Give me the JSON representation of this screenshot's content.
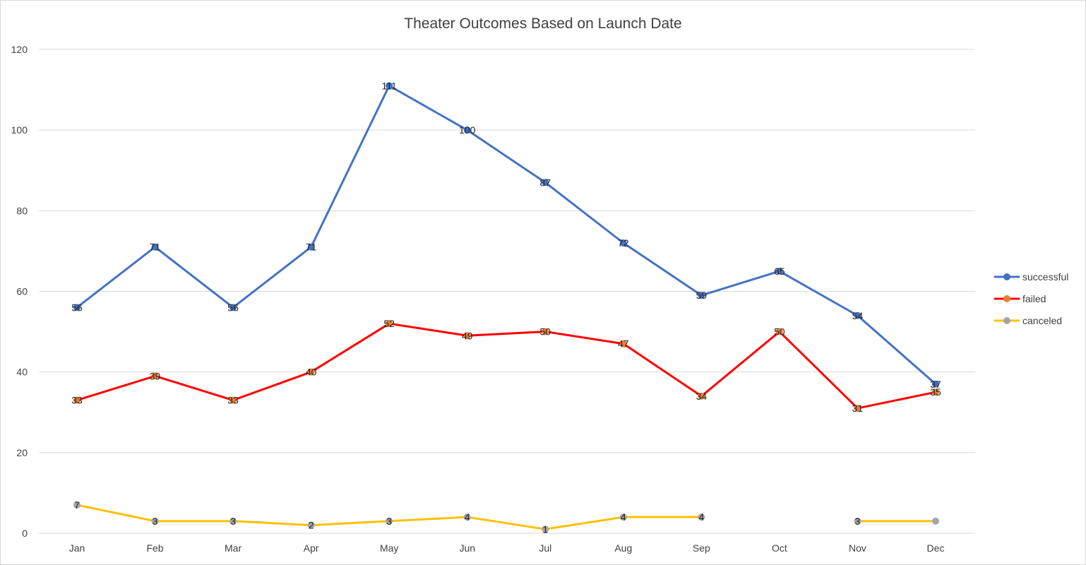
{
  "chart_data": {
    "type": "line",
    "title": "Theater Outcomes Based on Launch Date",
    "xlabel": "",
    "ylabel": "",
    "categories": [
      "Jan",
      "Feb",
      "Mar",
      "Apr",
      "May",
      "Jun",
      "Jul",
      "Aug",
      "Sep",
      "Oct",
      "Nov",
      "Dec"
    ],
    "ylim": [
      0,
      120
    ],
    "yticks": [
      0,
      20,
      40,
      60,
      80,
      100,
      120
    ],
    "grid": true,
    "legend_position": "right",
    "series": [
      {
        "name": "successful",
        "color": "#4472c4",
        "line_color": "#4472c4",
        "marker_color": "#4472c4",
        "values": [
          56,
          71,
          56,
          71,
          111,
          100,
          87,
          72,
          59,
          65,
          54,
          37
        ],
        "labels_shown": [
          true,
          true,
          true,
          true,
          true,
          true,
          true,
          true,
          true,
          true,
          true,
          true
        ]
      },
      {
        "name": "failed",
        "color": "#ff0000",
        "line_color": "#ff0000",
        "marker_color": "#ed7d31",
        "values": [
          33,
          39,
          33,
          40,
          52,
          49,
          50,
          47,
          34,
          50,
          31,
          35
        ],
        "labels_shown": [
          true,
          true,
          true,
          true,
          true,
          true,
          true,
          true,
          true,
          true,
          true,
          true
        ]
      },
      {
        "name": "canceled",
        "color": "#ffc000",
        "line_color": "#ffc000",
        "marker_color": "#a5a5a5",
        "values": [
          7,
          3,
          3,
          2,
          3,
          4,
          1,
          4,
          4,
          null,
          3,
          3
        ],
        "labels_shown": [
          true,
          true,
          true,
          true,
          true,
          true,
          true,
          true,
          true,
          false,
          true,
          false
        ]
      }
    ]
  }
}
